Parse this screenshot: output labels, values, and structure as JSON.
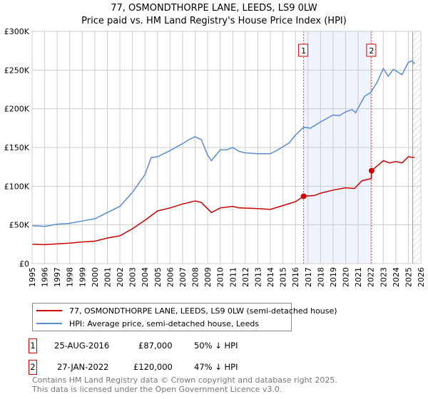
{
  "title": "77, OSMONDTHORPE LANE, LEEDS, LS9 0LW",
  "subtitle": "Price paid vs. HM Land Registry's House Price Index (HPI)",
  "chart_data": {
    "type": "line",
    "title": "77, OSMONDTHORPE LANE, LEEDS, LS9 0LW",
    "xlim": [
      1995,
      2026
    ],
    "ylim": [
      0,
      300000
    ],
    "x_ticks": [
      "1995",
      "1996",
      "1997",
      "1998",
      "1999",
      "2000",
      "2001",
      "2002",
      "2003",
      "2004",
      "2005",
      "2006",
      "2007",
      "2008",
      "2009",
      "2010",
      "2011",
      "2012",
      "2013",
      "2014",
      "2015",
      "2016",
      "2017",
      "2018",
      "2019",
      "2020",
      "2021",
      "2022",
      "2023",
      "2024",
      "2025",
      "2026"
    ],
    "y_ticks": [
      {
        "v": 0,
        "label": "£0"
      },
      {
        "v": 50000,
        "label": "£50K"
      },
      {
        "v": 100000,
        "label": "£100K"
      },
      {
        "v": 150000,
        "label": "£150K"
      },
      {
        "v": 200000,
        "label": "£200K"
      },
      {
        "v": 250000,
        "label": "£250K"
      },
      {
        "v": 300000,
        "label": "£300K"
      }
    ],
    "grid": true,
    "shaded_range": [
      2016.65,
      2022.07
    ],
    "forecast_start": 2025.35,
    "series": [
      {
        "name": "77, OSMONDTHORPE LANE, LEEDS, LS9 0LW (semi-detached house)",
        "color": "#cc0000",
        "x": [
          1995,
          1996,
          1997,
          1998,
          1999,
          2000,
          2001,
          2002,
          2003,
          2004,
          2005,
          2006,
          2007,
          2008,
          2008.5,
          2009.3,
          2010,
          2011,
          2011.5,
          2013,
          2014,
          2015,
          2016,
          2016.65,
          2017.5,
          2018,
          2019,
          2020,
          2020.7,
          2021.3,
          2022.05,
          2022.07,
          2023,
          2023.5,
          2024,
          2024.5,
          2025,
          2025.5
        ],
        "y": [
          25000,
          24500,
          25500,
          26500,
          28000,
          29000,
          33000,
          36000,
          45000,
          56000,
          68000,
          72000,
          77000,
          81000,
          79000,
          66000,
          72000,
          74000,
          72000,
          71000,
          70000,
          75000,
          80000,
          87000,
          88000,
          91000,
          95000,
          98000,
          97000,
          107000,
          110000,
          120000,
          133000,
          130000,
          132000,
          130000,
          138000,
          137000
        ]
      },
      {
        "name": "HPI: Average price, semi-detached house, Leeds",
        "color": "#5b8bd0",
        "x": [
          1995,
          1996,
          1997,
          1998,
          1999,
          2000,
          2001,
          2002,
          2003,
          2004,
          2004.5,
          2005,
          2006,
          2007,
          2007.5,
          2008,
          2008.5,
          2009,
          2009.3,
          2010,
          2010.5,
          2011,
          2011.5,
          2012,
          2013,
          2014,
          2014.5,
          2015.5,
          2016,
          2016.65,
          2017.2,
          2018,
          2019,
          2019.5,
          2020,
          2020.5,
          2020.8,
          2021.5,
          2022,
          2022.5,
          2023,
          2023.4,
          2023.8,
          2024.2,
          2024.5,
          2025,
          2025.3,
          2025.5
        ],
        "y": [
          49000,
          48000,
          51000,
          52000,
          55000,
          58000,
          66000,
          74000,
          92000,
          115000,
          137000,
          138000,
          146000,
          155000,
          160000,
          164000,
          160000,
          140000,
          133000,
          147000,
          147000,
          150000,
          145000,
          143000,
          142000,
          142000,
          146000,
          156000,
          166000,
          176000,
          175000,
          183000,
          192000,
          191000,
          196000,
          199000,
          195000,
          216000,
          221000,
          234000,
          252000,
          242000,
          251000,
          247000,
          244000,
          260000,
          262000,
          258000
        ]
      }
    ],
    "sales": [
      {
        "id": "1",
        "x": 2016.65,
        "y": 87000
      },
      {
        "id": "2",
        "x": 2022.07,
        "y": 120000
      }
    ]
  },
  "legend": {
    "items": [
      {
        "label": "77, OSMONDTHORPE LANE, LEEDS, LS9 0LW (semi-detached house)",
        "color": "#cc0000"
      },
      {
        "label": "HPI: Average price, semi-detached house, Leeds",
        "color": "#5b8bd0"
      }
    ]
  },
  "transactions": [
    {
      "id": "1",
      "date": "25-AUG-2016",
      "price": "£87,000",
      "hpi": "50% ↓ HPI"
    },
    {
      "id": "2",
      "date": "27-JAN-2022",
      "price": "£120,000",
      "hpi": "47% ↓ HPI"
    }
  ],
  "footer": {
    "line1": "Contains HM Land Registry data © Crown copyright and database right 2025.",
    "line2": "This data is licensed under the Open Government Licence v3.0."
  }
}
